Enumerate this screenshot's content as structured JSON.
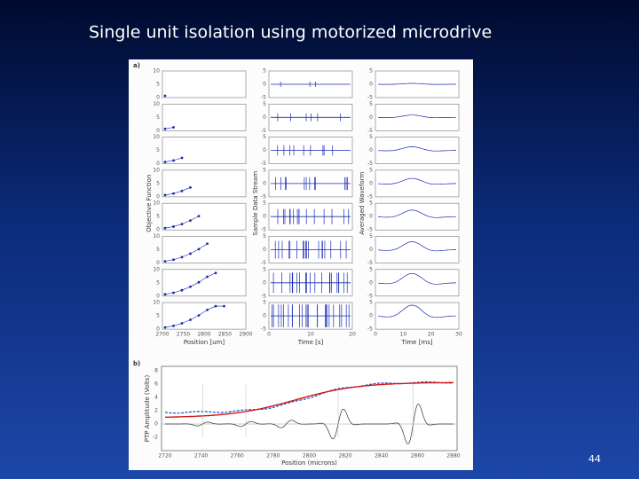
{
  "slide": {
    "title": "Single unit isolation using motorized microdrive",
    "page_number": "44"
  },
  "figure": {
    "panel_a": {
      "label": "a)",
      "ylabels": [
        "Objective Function",
        "Sample Data Stream",
        "Averaged Waveform"
      ],
      "xlabels": [
        "Position [um]",
        "Time [s]",
        "Time [ms]"
      ],
      "yticks": [
        [
          "10",
          "5",
          "0"
        ],
        [
          "5",
          "0",
          "-5"
        ],
        [
          "5",
          "0",
          "-5"
        ]
      ],
      "xticks": [
        [
          "2700",
          "2750",
          "2800",
          "2850",
          "2900"
        ],
        [
          "0",
          "10",
          "20"
        ],
        [
          "0",
          "10",
          "20",
          "30"
        ]
      ]
    },
    "panel_b": {
      "label": "b)",
      "ylabel": "PTP Amplitude (Volts)",
      "xlabel": "Position (microns)",
      "yticks": [
        "8",
        "6",
        "4",
        "2",
        "0",
        "-2"
      ],
      "xticks": [
        "2720",
        "2740",
        "2760",
        "2780",
        "2800",
        "2820",
        "2840",
        "2860",
        "2880"
      ]
    }
  }
}
